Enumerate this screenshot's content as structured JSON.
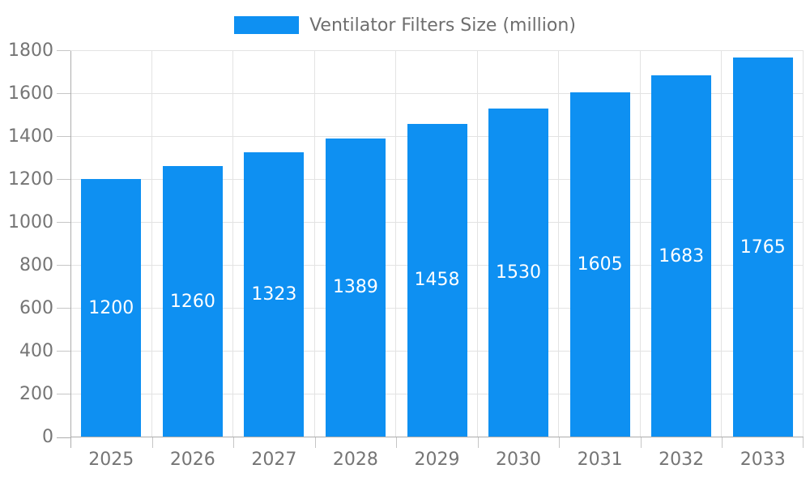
{
  "chart_data": {
    "type": "bar",
    "title": "Ventilator Filters Size (million)",
    "categories": [
      "2025",
      "2026",
      "2027",
      "2028",
      "2029",
      "2030",
      "2031",
      "2032",
      "2033"
    ],
    "values": [
      1200,
      1260,
      1323,
      1389,
      1458,
      1530,
      1605,
      1683,
      1765
    ],
    "series_name": "Ventilator Filters Size (million)",
    "xlabel": "",
    "ylabel": "",
    "ylim": [
      0,
      1800
    ],
    "yticks": [
      "0",
      "200",
      "400",
      "600",
      "800",
      "1000",
      "1200",
      "1400",
      "1600",
      "1800"
    ],
    "grid": true,
    "legend_position": "top-center",
    "bar_labels_inside": true,
    "colors": {
      "bar": "#0e90f2",
      "bar_label": "#ffffff",
      "axis_text": "#757575",
      "legend_text": "#6e6e6e",
      "gridline": "#e3e3e3",
      "axis_line": "#adadad",
      "tick": "#c6c6c6",
      "background": "#ffffff"
    }
  }
}
